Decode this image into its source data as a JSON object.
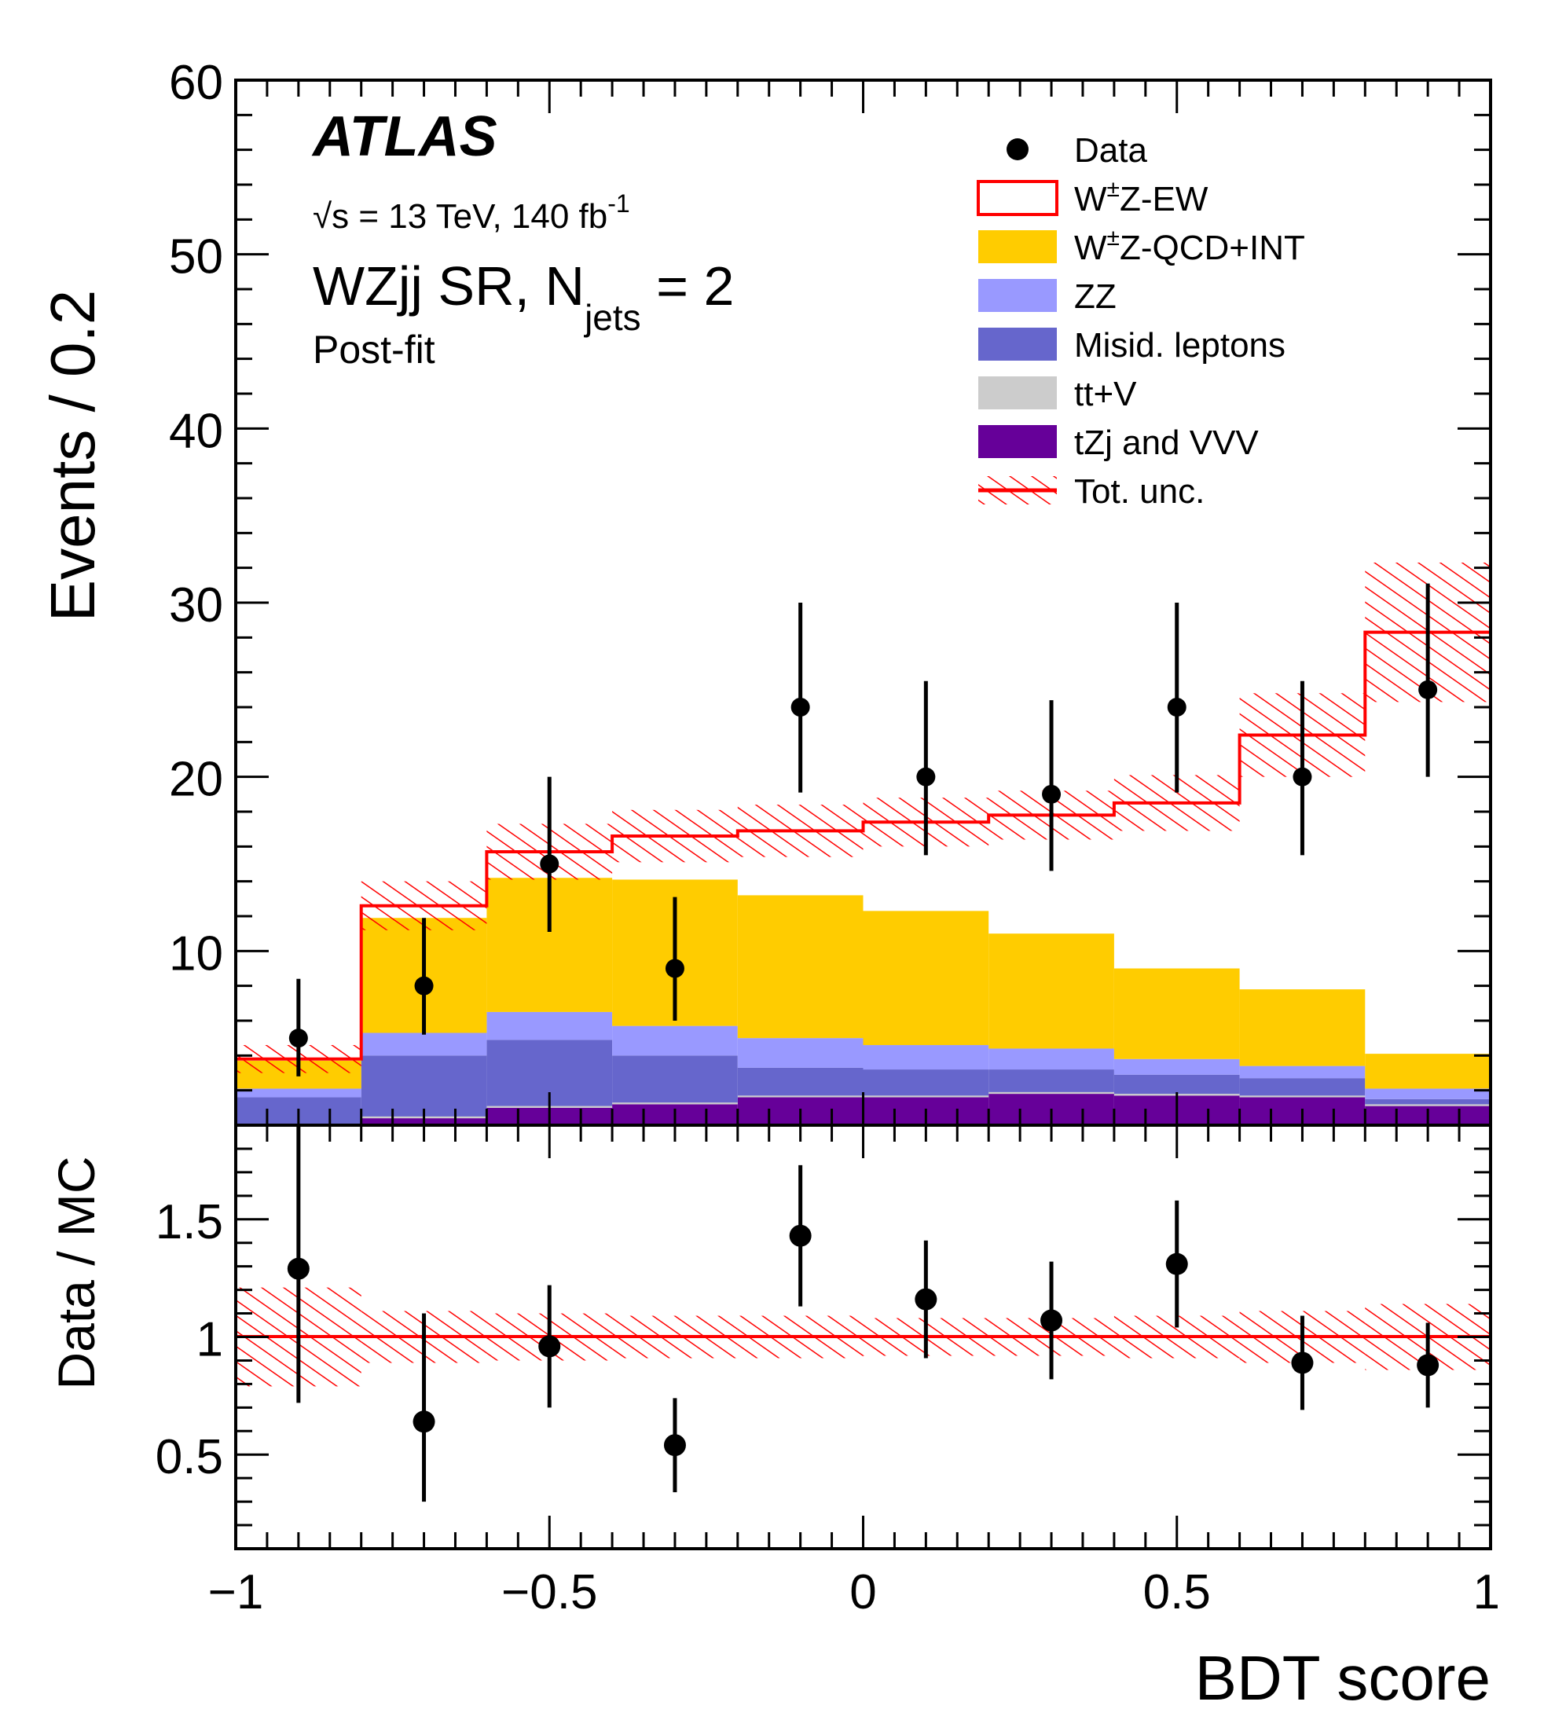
{
  "experiment_label": "ATLAS",
  "energy_label": {
    "sqrt": "√",
    "s_eq": "s = 13 TeV, 140 fb",
    "sup": "-1"
  },
  "region_label": {
    "main": "WZjj SR, N",
    "sub": "jets",
    "tail": " = 2"
  },
  "fit_label": "Post-fit",
  "colors": {
    "wz_ew": "#ff0000",
    "wz_qcd": "#ffcc00",
    "zz": "#9999ff",
    "misid": "#6666cc",
    "ttv": "#cccccc",
    "tzj_vvv": "#660099",
    "data": "#000000",
    "unc": "#ff0000"
  },
  "legend": [
    {
      "key": "data",
      "text": "Data"
    },
    {
      "key": "wz_ew",
      "text": "W",
      "sup": "±",
      "rest": "Z-EW"
    },
    {
      "key": "wz_qcd",
      "text": "W",
      "sup": "±",
      "rest": "Z-QCD+INT"
    },
    {
      "key": "zz",
      "text": "ZZ"
    },
    {
      "key": "misid",
      "text": "Misid. leptons"
    },
    {
      "key": "ttv",
      "text": "tt+V"
    },
    {
      "key": "tzj_vvv",
      "text": "tZj and VVV"
    },
    {
      "key": "unc",
      "text": "Tot. unc."
    }
  ],
  "chart_data": [
    {
      "type": "bar",
      "panel": "main",
      "ylabel": "Events / 0.2",
      "ylim": [
        0,
        60
      ],
      "yticks": [
        "10",
        "20",
        "30",
        "40",
        "50",
        "60"
      ],
      "bin_edges": [
        -1.0,
        -0.8,
        -0.6,
        -0.4,
        -0.2,
        0.0,
        0.2,
        0.4,
        0.6,
        0.8,
        1.0
      ],
      "stacked_series": [
        {
          "key": "tzj_vvv",
          "name": "tZj and VVV",
          "values": [
            0.0,
            0.4,
            1.0,
            1.2,
            1.6,
            1.6,
            1.8,
            1.7,
            1.6,
            1.1
          ]
        },
        {
          "key": "ttv",
          "name": "tt+V",
          "values": [
            0.0,
            0.1,
            0.1,
            0.1,
            0.1,
            0.1,
            0.1,
            0.1,
            0.1,
            0.1
          ]
        },
        {
          "key": "misid",
          "name": "Misid. leptons",
          "values": [
            1.6,
            3.5,
            3.8,
            2.7,
            1.6,
            1.5,
            1.3,
            1.1,
            1.0,
            0.3
          ]
        },
        {
          "key": "zz",
          "name": "ZZ",
          "values": [
            0.5,
            1.3,
            1.6,
            1.7,
            1.7,
            1.4,
            1.2,
            0.9,
            0.7,
            0.6
          ]
        },
        {
          "key": "wz_qcd",
          "name": "W±Z-QCD+INT",
          "values": [
            1.6,
            6.6,
            7.7,
            8.4,
            8.2,
            7.7,
            6.6,
            5.2,
            4.4,
            2.0
          ]
        }
      ],
      "total_prediction": {
        "key": "wz_ew",
        "name": "W±Z-EW",
        "values": [
          3.8,
          12.6,
          15.7,
          16.6,
          16.9,
          17.4,
          17.8,
          18.5,
          22.4,
          28.3
        ]
      },
      "total_uncertainty": [
        0.8,
        1.4,
        1.6,
        1.5,
        1.5,
        1.4,
        1.4,
        1.6,
        2.4,
        4.0
      ],
      "data": {
        "x": [
          -0.9,
          -0.7,
          -0.5,
          -0.3,
          -0.1,
          0.1,
          0.3,
          0.5,
          0.7,
          0.9
        ],
        "y": [
          5,
          8,
          15,
          9,
          24,
          20,
          19,
          24,
          20,
          25
        ],
        "err_low": [
          2.2,
          2.8,
          3.9,
          3.0,
          4.9,
          4.5,
          4.4,
          4.9,
          4.5,
          5.0
        ],
        "err_high": [
          3.4,
          3.9,
          5.0,
          4.1,
          6.0,
          5.5,
          5.4,
          6.0,
          5.5,
          6.1
        ]
      }
    },
    {
      "type": "scatter",
      "panel": "ratio",
      "ylabel": "Data / MC",
      "xlabel": "BDT score",
      "ylim": [
        0.1,
        1.9
      ],
      "xlim": [
        -1,
        1
      ],
      "yticks": [
        "0.5",
        "1",
        "1.5"
      ],
      "xticks": [
        "−1",
        "−0.5",
        "0",
        "0.5",
        "1"
      ],
      "x": [
        -0.9,
        -0.7,
        -0.5,
        -0.3,
        -0.1,
        0.1,
        0.3,
        0.5,
        0.7,
        0.9
      ],
      "y": [
        1.29,
        0.64,
        0.96,
        0.54,
        1.43,
        1.16,
        1.07,
        1.31,
        0.89,
        0.88
      ],
      "err_low": [
        0.57,
        0.34,
        0.26,
        0.2,
        0.3,
        0.25,
        0.25,
        0.27,
        0.2,
        0.18
      ],
      "err_high": [
        0.9,
        0.46,
        0.26,
        0.2,
        0.3,
        0.25,
        0.25,
        0.27,
        0.2,
        0.18
      ],
      "uncertainty_band": [
        0.21,
        0.11,
        0.1,
        0.09,
        0.09,
        0.08,
        0.08,
        0.09,
        0.11,
        0.14
      ]
    }
  ]
}
